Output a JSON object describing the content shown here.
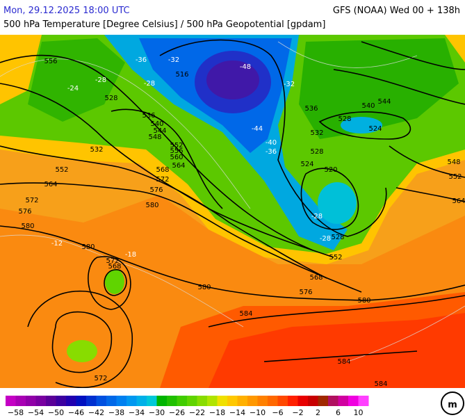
{
  "header": {
    "datetime": "Mon, 29.12.2025 18:00 UTC",
    "model": "GFS (NOAA) Wed 00 + 138h",
    "parameter": "500 hPa Temperature [Degree Celsius] / 500 hPa Geopotential [gpdam]"
  },
  "map": {
    "contour_labels": [
      "556",
      "528",
      "532",
      "552",
      "564",
      "572",
      "576",
      "580",
      "580",
      "580",
      "576",
      "572",
      "568",
      "564",
      "560",
      "556",
      "552",
      "548",
      "544",
      "540",
      "536",
      "516",
      "-48",
      "-44",
      "-40",
      "-36",
      "-32",
      "-36",
      "-28",
      "-28",
      "-24",
      "-32",
      "536",
      "532",
      "528",
      "524",
      "520",
      "528",
      "540",
      "544",
      "524",
      "548",
      "552",
      "564",
      "552",
      "568",
      "576",
      "580",
      "584",
      "580",
      "572",
      "568",
      "572",
      "584",
      "584",
      "-28",
      "-28",
      "528",
      "-12",
      "-18"
    ]
  },
  "colorbar": {
    "labels": [
      "−58",
      "−54",
      "−50",
      "−46",
      "−42",
      "−38",
      "−34",
      "−30",
      "−26",
      "−22",
      "−18",
      "−14",
      "−10",
      "−6",
      "−2",
      "2",
      "6",
      "10"
    ],
    "colors": [
      "#c400c4",
      "#a800b4",
      "#9000a8",
      "#7800a0",
      "#5a0098",
      "#3c00a0",
      "#2000b0",
      "#0010c0",
      "#0030d0",
      "#0050e0",
      "#0068e8",
      "#0080f0",
      "#0098f0",
      "#00b0e8",
      "#00c8d8",
      "#00b400",
      "#20c000",
      "#40cc00",
      "#60d400",
      "#88dc00",
      "#b0e400",
      "#f0e000",
      "#ffc800",
      "#ffb000",
      "#ff9800",
      "#ff8000",
      "#ff6800",
      "#ff4800",
      "#ff2000",
      "#e80000",
      "#c80000",
      "#a02800",
      "#b01060",
      "#d000a0",
      "#f000e0",
      "#ff40ff"
    ]
  }
}
